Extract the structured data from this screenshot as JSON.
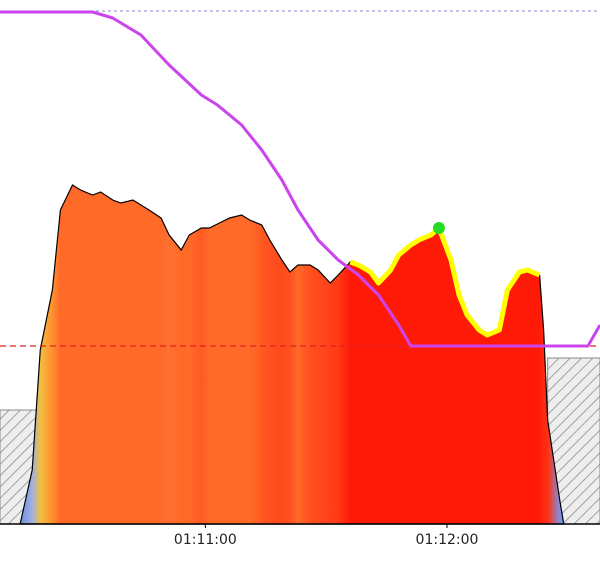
{
  "chart_data": {
    "type": "area",
    "xlim": [
      4209,
      4358
    ],
    "ylim": [
      0,
      524
    ],
    "xticks": [
      {
        "value": 4260,
        "label": "01:11:00"
      },
      {
        "value": 4320,
        "label": "01:12:00"
      }
    ],
    "x": [
      4214,
      4217,
      4219,
      4222,
      4224,
      4227,
      4229,
      4232,
      4234,
      4237,
      4239,
      4242,
      4244,
      4246,
      4249,
      4251,
      4254,
      4256,
      4259,
      4261,
      4264,
      4266,
      4269,
      4271,
      4274,
      4276,
      4279,
      4281,
      4283,
      4286,
      4288,
      4291,
      4293,
      4296,
      4298,
      4301,
      4303,
      4306,
      4308,
      4311,
      4313,
      4316,
      4318,
      4321,
      4323,
      4325,
      4328,
      4330,
      4333,
      4335,
      4338,
      4340,
      4343,
      4344,
      4345,
      4348,
      4349
    ],
    "values": [
      0,
      54,
      174,
      234,
      314,
      339,
      334,
      329,
      332,
      324,
      321,
      324,
      319,
      314,
      306,
      289,
      274,
      289,
      296,
      296,
      302,
      306,
      309,
      304,
      299,
      284,
      264,
      252,
      259,
      259,
      254,
      241,
      249,
      262,
      259,
      252,
      241,
      254,
      269,
      279,
      284,
      289,
      296,
      264,
      229,
      209,
      194,
      189,
      194,
      234,
      252,
      254,
      249,
      194,
      104,
      24,
      0
    ],
    "colors": [
      "#7090e0",
      "#a0b0e0",
      "#f0c040",
      "#ff9030",
      "#ff6a28",
      "#ff6a28",
      "#ff6a28",
      "#ff6a28",
      "#ff6a28",
      "#ff6a28",
      "#ff6a28",
      "#ff6a28",
      "#ff6a28",
      "#ff6a28",
      "#ff6a28",
      "#ff7030",
      "#ff6a28",
      "#ff6a28",
      "#ff5a22",
      "#ff6a28",
      "#ff6a28",
      "#ff6a28",
      "#ff6a28",
      "#ff6a28",
      "#ff5a22",
      "#ff5020",
      "#ff4a1c",
      "#ff5020",
      "#ff6a28",
      "#ff5020",
      "#ff4a1c",
      "#ff401a",
      "#ff3a16",
      "#ff1a08",
      "#ff1a08",
      "#ff1a08",
      "#ff1a08",
      "#ff1a08",
      "#ff1a08",
      "#ff1a08",
      "#ff1a08",
      "#ff1a08",
      "#ff1a08",
      "#ff1a08",
      "#ff1a08",
      "#ff1a08",
      "#ff1a08",
      "#ff1a08",
      "#ff1a08",
      "#ff1a08",
      "#ff1a08",
      "#ff1a08",
      "#ff1a08",
      "#ff2a10",
      "#ff3010",
      "#8090e0",
      "#7090e0"
    ],
    "highlight_range": [
      4296,
      4343
    ],
    "highlight_color": "#ffff00",
    "marker": {
      "x": 4318,
      "value": 296,
      "color": "#22dd22"
    },
    "line": {
      "color": "#cc44ee",
      "x": [
        4209,
        4232,
        4237,
        4244,
        4251,
        4259,
        4263,
        4269,
        4274,
        4279,
        4283,
        4288,
        4293,
        4298,
        4303,
        4308,
        4311,
        4355,
        4358
      ],
      "values": [
        512,
        512,
        506,
        489,
        459,
        429,
        419,
        399,
        374,
        344,
        314,
        284,
        264,
        249,
        229,
        199,
        178,
        178,
        199
      ]
    },
    "hatched": [
      {
        "x": [
          4209,
          4218
        ],
        "values": [
          114,
          114
        ]
      },
      {
        "x": [
          4345,
          4358
        ],
        "values": [
          166,
          166
        ]
      }
    ],
    "reference_lines": [
      {
        "value": 178,
        "color": "#e02020"
      },
      {
        "value": 513,
        "color": "#8888cc"
      }
    ]
  }
}
